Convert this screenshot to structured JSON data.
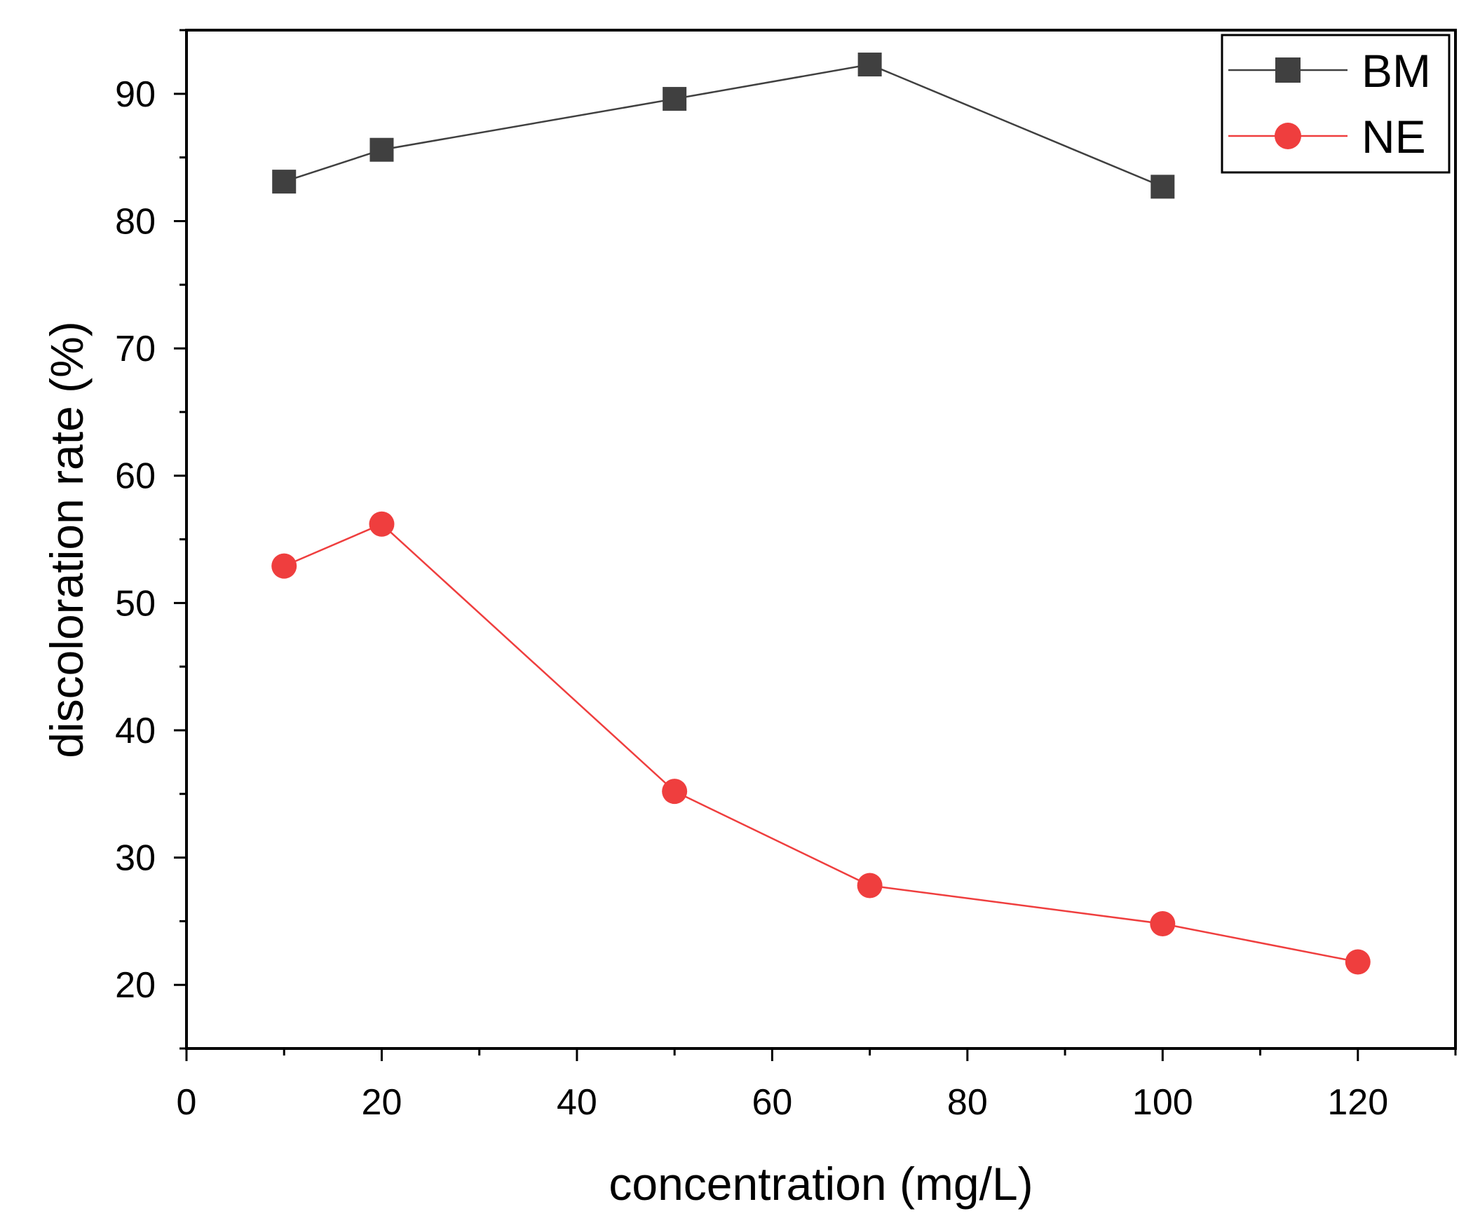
{
  "chart_data": {
    "type": "line",
    "title": "",
    "xlabel": "concentration (mg/L)",
    "ylabel": "discoloration rate (%)",
    "xlim": [
      0,
      130
    ],
    "ylim": [
      15,
      95
    ],
    "x_ticks": [
      0,
      20,
      40,
      60,
      80,
      100,
      120
    ],
    "y_ticks": [
      20,
      30,
      40,
      50,
      60,
      70,
      80,
      90
    ],
    "grid": false,
    "legend_position": "top-right",
    "series": [
      {
        "name": "BM",
        "marker": "square",
        "color": "#404040",
        "x": [
          10,
          20,
          50,
          70,
          100
        ],
        "y": [
          83.1,
          85.6,
          89.6,
          92.3,
          82.7
        ]
      },
      {
        "name": "NE",
        "marker": "circle",
        "color": "#ef3e3e",
        "x": [
          10,
          20,
          50,
          70,
          100,
          120
        ],
        "y": [
          52.9,
          56.2,
          35.2,
          27.8,
          24.8,
          21.8
        ]
      }
    ]
  }
}
